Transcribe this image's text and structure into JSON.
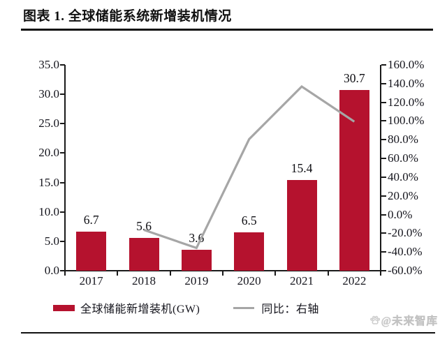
{
  "header": {
    "title": "图表 1. 全球储能系统新增装机情况"
  },
  "chart_data": {
    "type": "bar+line",
    "title": "图表 1. 全球储能系统新增装机情况",
    "categories": [
      "2017",
      "2018",
      "2019",
      "2020",
      "2021",
      "2022"
    ],
    "series": [
      {
        "name": "全球储能新增装机(GW)",
        "type": "bar",
        "axis": "left",
        "values": [
          6.7,
          5.6,
          3.6,
          6.5,
          15.4,
          30.7
        ],
        "value_labels": [
          "6.7",
          "5.6",
          "3.6",
          "6.5",
          "15.4",
          "30.7"
        ],
        "color": "#b5122e"
      },
      {
        "name": "同比：右轴",
        "type": "line",
        "axis": "right",
        "unit": "%",
        "values": [
          null,
          -16.4,
          -35.7,
          80.6,
          136.9,
          99.4
        ],
        "color": "#a6a6a6"
      }
    ],
    "left_axis": {
      "min": 0,
      "max": 35,
      "ticks_top_to_bottom": [
        "35.0",
        "30.0",
        "25.0",
        "20.0",
        "15.0",
        "10.0",
        "5.0",
        "0.0"
      ]
    },
    "right_axis": {
      "min": -60,
      "max": 160,
      "ticks_top_to_bottom": [
        "160.0%",
        "140.0%",
        "120.0%",
        "100.0%",
        "80.0%",
        "60.0%",
        "40.0%",
        "20.0%",
        "0.0%",
        "-20.0%",
        "-40.0%",
        "-60.0%"
      ]
    },
    "grid": false,
    "legend_position": "bottom",
    "xlabel": "",
    "ylabel_left": "GW",
    "ylabel_right": "%"
  },
  "legend": {
    "bar_label": "全球储能新增装机(GW)",
    "line_label": "同比：右轴"
  },
  "watermark": {
    "text": "@未来智库"
  },
  "colors": {
    "bar": "#b5122e",
    "line": "#a6a6a6",
    "axis": "#1a1a1a",
    "text": "#15151d",
    "watermark": "#cdcdcd"
  }
}
